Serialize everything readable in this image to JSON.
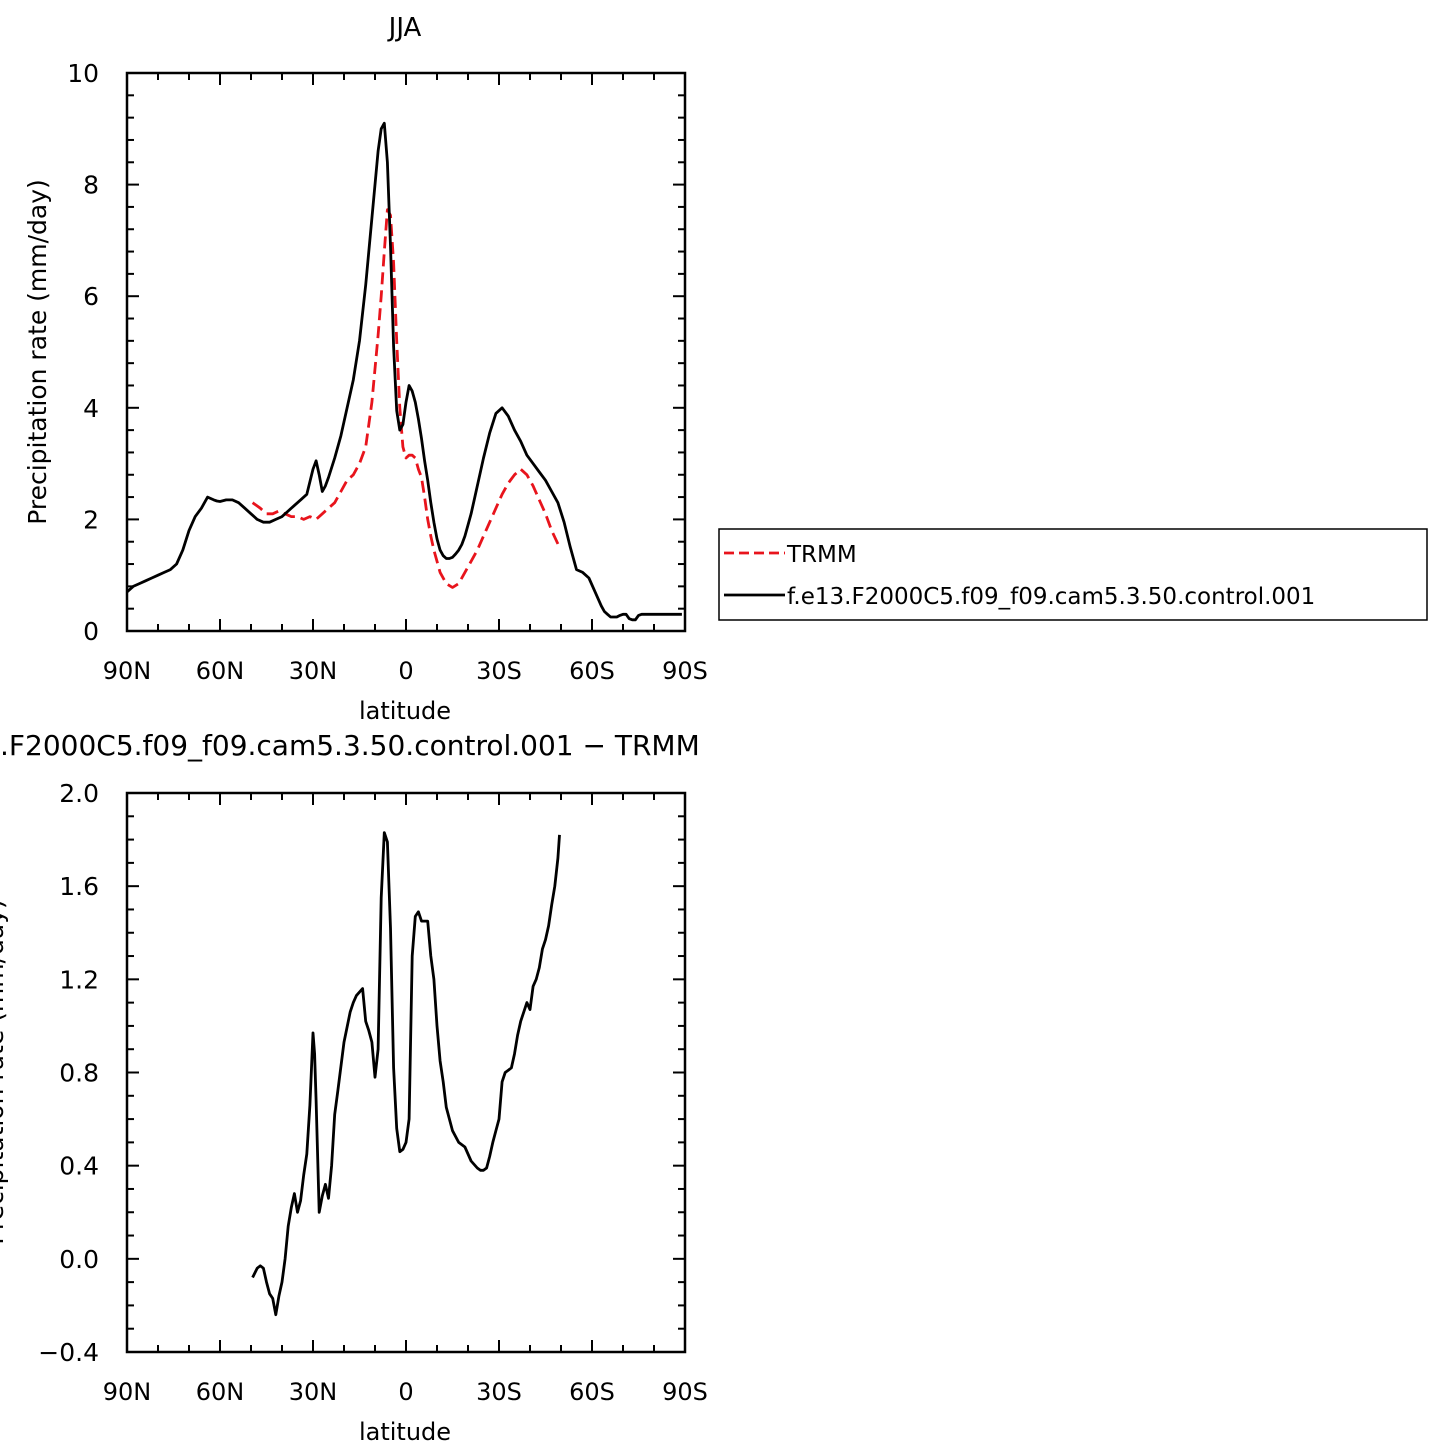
{
  "chart_data": [
    {
      "type": "line",
      "title": "JJA",
      "xlabel": "latitude",
      "ylabel": "Precipitation rate (mm/day)",
      "x_range": [
        90,
        -90
      ],
      "ylim": [
        0,
        10
      ],
      "x_ticks": [
        90,
        60,
        30,
        0,
        -30,
        -60,
        -90
      ],
      "x_tick_labels": [
        "90N",
        "60N",
        "30N",
        "0",
        "30S",
        "60S",
        "90S"
      ],
      "y_ticks": [
        0,
        2,
        4,
        6,
        8,
        10
      ],
      "y_tick_labels": [
        "0",
        "2",
        "4",
        "6",
        "8",
        "10"
      ],
      "legend_placement": "right",
      "series": [
        {
          "name": "TRMM",
          "color": "#e8141c",
          "dash": "dashed",
          "x": [
            49.5,
            47,
            45,
            43,
            41,
            39,
            37,
            35,
            33,
            31,
            29,
            27,
            25,
            23,
            21,
            19,
            17,
            15,
            13,
            11,
            9,
            8,
            7,
            6,
            5,
            4,
            3,
            2,
            1,
            0,
            -1,
            -2,
            -3,
            -4,
            -5,
            -6,
            -7,
            -8,
            -9,
            -10,
            -11,
            -13,
            -15,
            -17,
            -19,
            -21,
            -23,
            -25,
            -27,
            -29,
            -31,
            -33,
            -35,
            -37,
            -39,
            -41,
            -43,
            -45,
            -47,
            -49.5
          ],
          "y": [
            2.3,
            2.2,
            2.1,
            2.1,
            2.15,
            2.1,
            2.05,
            2.05,
            2.0,
            2.05,
            2.0,
            2.1,
            2.2,
            2.3,
            2.5,
            2.7,
            2.8,
            3.0,
            3.3,
            4.1,
            5.3,
            6.0,
            6.8,
            7.55,
            7.45,
            6.6,
            5.2,
            4.0,
            3.3,
            3.1,
            3.15,
            3.15,
            3.1,
            2.9,
            2.75,
            2.4,
            2.0,
            1.7,
            1.45,
            1.25,
            1.05,
            0.85,
            0.78,
            0.85,
            1.05,
            1.25,
            1.45,
            1.7,
            1.95,
            2.2,
            2.45,
            2.65,
            2.8,
            2.9,
            2.8,
            2.6,
            2.35,
            2.1,
            1.8,
            1.5
          ]
        },
        {
          "name": "f.e13.F2000C5.f09_f09.cam5.3.50.control.001",
          "color": "#000000",
          "dash": "solid",
          "x": [
            90,
            88,
            86,
            84,
            82,
            80,
            78,
            76,
            74,
            72,
            70,
            68,
            66,
            64,
            62,
            61,
            60,
            58,
            56,
            54,
            52,
            50,
            48,
            46,
            44,
            42,
            40,
            38,
            36,
            34,
            32,
            30,
            29,
            28,
            27,
            26,
            25,
            23,
            21,
            19,
            17,
            15,
            13,
            11,
            9,
            8,
            7,
            6,
            5,
            4,
            3,
            2,
            1,
            0,
            -1,
            -2,
            -3,
            -4,
            -5,
            -6,
            -7,
            -8,
            -9,
            -10,
            -11,
            -12,
            -13,
            -14,
            -15,
            -16,
            -17,
            -18,
            -19,
            -20,
            -21,
            -22,
            -23,
            -24,
            -25,
            -27,
            -29,
            -31,
            -33,
            -35,
            -37,
            -39,
            -41,
            -43,
            -45,
            -47,
            -49,
            -51,
            -53,
            -55,
            -57,
            -59,
            -61,
            -63,
            -64,
            -65,
            -66,
            -67,
            -68,
            -69,
            -70,
            -71,
            -72,
            -73,
            -74,
            -75,
            -76,
            -77,
            -78,
            -79,
            -80,
            -81,
            -82,
            -83,
            -84,
            -85,
            -86,
            -87,
            -88,
            -89
          ],
          "y": [
            0.7,
            0.8,
            0.85,
            0.9,
            0.95,
            1.0,
            1.05,
            1.1,
            1.2,
            1.45,
            1.8,
            2.05,
            2.2,
            2.4,
            2.35,
            2.33,
            2.32,
            2.35,
            2.35,
            2.3,
            2.2,
            2.1,
            2.0,
            1.95,
            1.95,
            2.0,
            2.05,
            2.15,
            2.25,
            2.35,
            2.45,
            2.9,
            3.05,
            2.8,
            2.5,
            2.6,
            2.75,
            3.1,
            3.5,
            4.0,
            4.5,
            5.2,
            6.2,
            7.4,
            8.6,
            9.0,
            9.1,
            8.4,
            6.9,
            5.1,
            3.95,
            3.6,
            3.7,
            4.1,
            4.4,
            4.3,
            4.1,
            3.8,
            3.45,
            3.05,
            2.7,
            2.3,
            1.95,
            1.65,
            1.45,
            1.35,
            1.3,
            1.3,
            1.32,
            1.38,
            1.45,
            1.55,
            1.7,
            1.9,
            2.1,
            2.35,
            2.6,
            2.85,
            3.1,
            3.55,
            3.9,
            4.0,
            3.85,
            3.6,
            3.4,
            3.15,
            3.0,
            2.85,
            2.7,
            2.5,
            2.3,
            1.95,
            1.5,
            1.1,
            1.05,
            0.95,
            0.7,
            0.45,
            0.35,
            0.3,
            0.25,
            0.25,
            0.25,
            0.28,
            0.3,
            0.3,
            0.22,
            0.2,
            0.2,
            0.28,
            0.3,
            0.3,
            0.3,
            0.3,
            0.3,
            0.3,
            0.3,
            0.3,
            0.3,
            0.3,
            0.3,
            0.3,
            0.3,
            0.3
          ]
        }
      ]
    },
    {
      "type": "line",
      "title": ".F2000C5.f09_f09.cam5.3.50.control.001  −  TRMM",
      "xlabel": "latitude",
      "ylabel": "Precipitation rate (mm/day)",
      "x_range": [
        90,
        -90
      ],
      "ylim": [
        -0.4,
        2.0
      ],
      "x_ticks": [
        90,
        60,
        30,
        0,
        -30,
        -60,
        -90
      ],
      "x_tick_labels": [
        "90N",
        "60N",
        "30N",
        "0",
        "30S",
        "60S",
        "90S"
      ],
      "y_ticks": [
        -0.4,
        0.0,
        0.4,
        0.8,
        1.2,
        1.6,
        2.0
      ],
      "y_tick_labels": [
        "−0.4",
        "0.0",
        "0.4",
        "0.8",
        "1.2",
        "1.6",
        "2.0"
      ],
      "series": [
        {
          "color": "#000000",
          "dash": "solid",
          "x": [
            49.5,
            48,
            47,
            46,
            45,
            44,
            43,
            42,
            41,
            40,
            39,
            38,
            37,
            36,
            35,
            34,
            33,
            32,
            31,
            30,
            29.5,
            29,
            28,
            27,
            26,
            25,
            24,
            23,
            22,
            20,
            18,
            17,
            16,
            14,
            13,
            12,
            11,
            10,
            9,
            8,
            7,
            6,
            5,
            4,
            3,
            2,
            1,
            0,
            -1,
            -2,
            -3,
            -4,
            -5,
            -6,
            -7,
            -8,
            -9,
            -10,
            -11,
            -12,
            -13,
            -15,
            -17,
            -19,
            -21,
            -23,
            -24,
            -25,
            -26,
            -27,
            -28,
            -29,
            -30,
            -31,
            -32,
            -33,
            -34,
            -35,
            -36,
            -37,
            -38,
            -39,
            -40,
            -41,
            -42,
            -43,
            -44,
            -45,
            -46,
            -47,
            -48,
            -49,
            -49.5
          ],
          "y": [
            -0.08,
            -0.04,
            -0.03,
            -0.04,
            -0.1,
            -0.15,
            -0.17,
            -0.24,
            -0.16,
            -0.1,
            0.0,
            0.14,
            0.22,
            0.28,
            0.2,
            0.25,
            0.36,
            0.45,
            0.66,
            0.97,
            0.88,
            0.68,
            0.2,
            0.27,
            0.32,
            0.26,
            0.4,
            0.62,
            0.72,
            0.93,
            1.06,
            1.1,
            1.13,
            1.16,
            1.02,
            0.98,
            0.93,
            0.78,
            0.9,
            1.55,
            1.83,
            1.79,
            1.42,
            0.82,
            0.56,
            0.46,
            0.47,
            0.5,
            0.6,
            1.3,
            1.47,
            1.49,
            1.45,
            1.45,
            1.45,
            1.3,
            1.2,
            1.0,
            0.85,
            0.76,
            0.65,
            0.55,
            0.5,
            0.48,
            0.42,
            0.39,
            0.38,
            0.38,
            0.39,
            0.44,
            0.5,
            0.55,
            0.6,
            0.76,
            0.8,
            0.81,
            0.82,
            0.88,
            0.96,
            1.02,
            1.06,
            1.1,
            1.07,
            1.17,
            1.2,
            1.25,
            1.33,
            1.37,
            1.43,
            1.52,
            1.6,
            1.72,
            1.82
          ]
        }
      ]
    }
  ]
}
